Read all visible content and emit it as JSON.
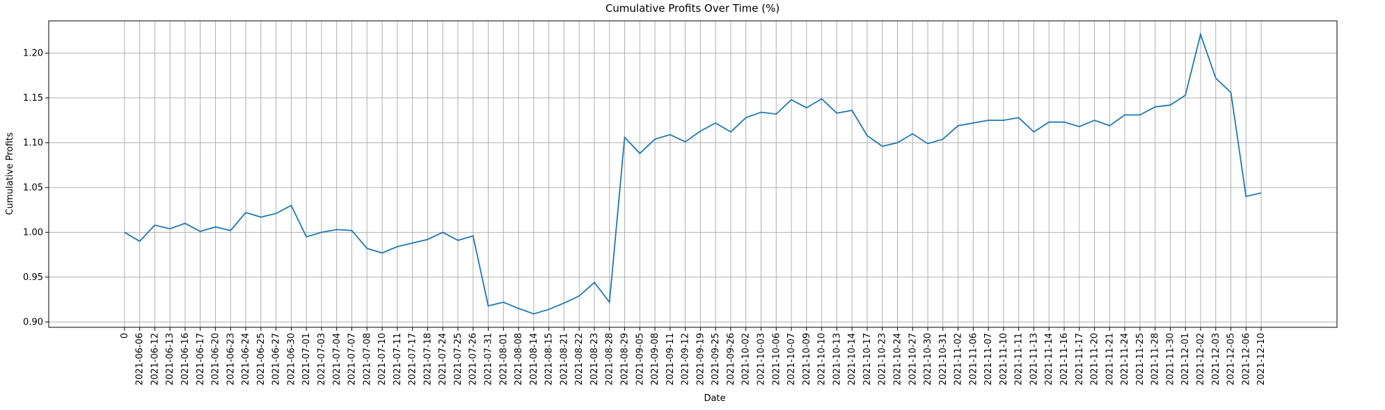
{
  "chart_data": {
    "type": "line",
    "title": "Cumulative Profits Over Time (%)",
    "x_label": "Date",
    "y_label": "Cumulative Profits",
    "categories": [
      "0",
      "2021-06-06",
      "2021-06-12",
      "2021-06-13",
      "2021-06-16",
      "2021-06-17",
      "2021-06-20",
      "2021-06-23",
      "2021-06-24",
      "2021-06-25",
      "2021-06-27",
      "2021-06-30",
      "2021-07-01",
      "2021-07-03",
      "2021-07-04",
      "2021-07-07",
      "2021-07-08",
      "2021-07-10",
      "2021-07-11",
      "2021-07-17",
      "2021-07-18",
      "2021-07-24",
      "2021-07-25",
      "2021-07-26",
      "2021-07-31",
      "2021-08-01",
      "2021-08-08",
      "2021-08-14",
      "2021-08-15",
      "2021-08-21",
      "2021-08-22",
      "2021-08-23",
      "2021-08-28",
      "2021-08-29",
      "2021-09-05",
      "2021-09-08",
      "2021-09-11",
      "2021-09-12",
      "2021-09-19",
      "2021-09-25",
      "2021-09-26",
      "2021-10-02",
      "2021-10-03",
      "2021-10-06",
      "2021-10-07",
      "2021-10-09",
      "2021-10-10",
      "2021-10-13",
      "2021-10-14",
      "2021-10-17",
      "2021-10-23",
      "2021-10-24",
      "2021-10-27",
      "2021-10-30",
      "2021-10-31",
      "2021-11-02",
      "2021-11-06",
      "2021-11-07",
      "2021-11-10",
      "2021-11-11",
      "2021-11-13",
      "2021-11-14",
      "2021-11-16",
      "2021-11-17",
      "2021-11-20",
      "2021-11-21",
      "2021-11-24",
      "2021-11-25",
      "2021-11-28",
      "2021-11-30",
      "2021-12-01",
      "2021-12-02",
      "2021-12-03",
      "2021-12-05",
      "2021-12-06",
      "2021-12-10"
    ],
    "series": [
      {
        "name": "Cumulative Profits",
        "color": "#1f77b4",
        "values": [
          1.0,
          0.99,
          1.008,
          1.004,
          1.01,
          1.001,
          1.006,
          1.002,
          1.022,
          1.017,
          1.021,
          1.03,
          0.995,
          1.0,
          1.003,
          1.002,
          0.982,
          0.977,
          0.984,
          0.988,
          0.992,
          1.0,
          0.991,
          0.996,
          0.918,
          0.922,
          0.915,
          0.909,
          0.914,
          0.921,
          0.929,
          0.944,
          0.922,
          1.106,
          1.088,
          1.104,
          1.109,
          1.101,
          1.113,
          1.122,
          1.112,
          1.128,
          1.134,
          1.132,
          1.148,
          1.139,
          1.149,
          1.133,
          1.136,
          1.108,
          1.096,
          1.1,
          1.11,
          1.099,
          1.104,
          1.119,
          1.122,
          1.125,
          1.125,
          1.128,
          1.112,
          1.123,
          1.123,
          1.118,
          1.125,
          1.119,
          1.131,
          1.131,
          1.14,
          1.142,
          1.153,
          1.221,
          1.172,
          1.156,
          1.04,
          1.044
        ]
      }
    ],
    "ylim": [
      0.894,
      1.236
    ],
    "yticks": [
      {
        "value": 0.9,
        "label": "0.90"
      },
      {
        "value": 0.95,
        "label": "0.95"
      },
      {
        "value": 1.0,
        "label": "1.00"
      },
      {
        "value": 1.05,
        "label": "1.05"
      },
      {
        "value": 1.1,
        "label": "1.10"
      },
      {
        "value": 1.15,
        "label": "1.15"
      },
      {
        "value": 1.2,
        "label": "1.20"
      }
    ],
    "grid": true
  }
}
